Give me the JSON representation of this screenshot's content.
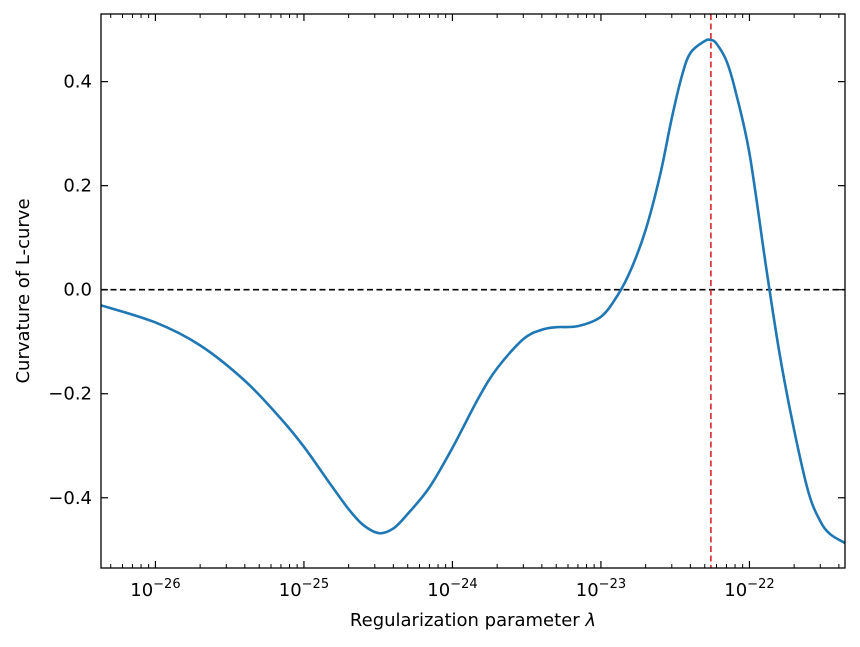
{
  "chart_data": {
    "type": "line",
    "title": "",
    "xlabel": "Regularization parameter",
    "xlabel_symbol": "λ",
    "ylabel": "Curvature of L-curve",
    "xscale": "log",
    "xlim": [
      4.3e-27,
      4.4e-22
    ],
    "ylim": [
      -0.535,
      0.53
    ],
    "x_ticks": [
      {
        "value": 1e-26,
        "base": "10",
        "exp": "−26"
      },
      {
        "value": 1e-25,
        "base": "10",
        "exp": "−25"
      },
      {
        "value": 1e-24,
        "base": "10",
        "exp": "−24"
      },
      {
        "value": 1e-23,
        "base": "10",
        "exp": "−23"
      },
      {
        "value": 1e-22,
        "base": "10",
        "exp": "−22"
      }
    ],
    "y_ticks": [
      {
        "value": 0.4,
        "label": "0.4"
      },
      {
        "value": 0.2,
        "label": "0.2"
      },
      {
        "value": 0.0,
        "label": "0.0"
      },
      {
        "value": -0.2,
        "label": "−0.2"
      },
      {
        "value": -0.4,
        "label": "−0.4"
      }
    ],
    "grid": false,
    "series": [
      {
        "color": "#1f77b4",
        "x": [
          4.3e-27,
          1e-26,
          2e-26,
          4e-26,
          7e-26,
          1e-25,
          1.5e-25,
          2e-25,
          2.5e-25,
          3.2e-25,
          4e-25,
          5e-25,
          7e-25,
          1e-24,
          1.5e-24,
          2e-24,
          3e-24,
          4e-24,
          5e-24,
          7e-24,
          1e-23,
          1.3e-23,
          1.6e-23,
          2e-23,
          2.5e-23,
          3e-23,
          3.5e-23,
          4e-23,
          5e-23,
          5.5e-23,
          6e-23,
          7e-23,
          8e-23,
          1e-22,
          1.3e-22,
          1.6e-22,
          2e-22,
          2.5e-22,
          3e-22,
          3.5e-22,
          4.4e-22
        ],
        "y": [
          -0.03,
          -0.063,
          -0.107,
          -0.175,
          -0.248,
          -0.302,
          -0.373,
          -0.422,
          -0.452,
          -0.468,
          -0.459,
          -0.431,
          -0.38,
          -0.304,
          -0.208,
          -0.151,
          -0.095,
          -0.077,
          -0.072,
          -0.07,
          -0.052,
          -0.01,
          0.04,
          0.115,
          0.22,
          0.33,
          0.41,
          0.455,
          0.478,
          0.48,
          0.473,
          0.44,
          0.385,
          0.262,
          0.04,
          -0.125,
          -0.27,
          -0.39,
          -0.445,
          -0.47,
          -0.487
        ]
      }
    ],
    "reference_lines": [
      {
        "orientation": "horizontal",
        "value": 0.0,
        "color": "#000000",
        "style": "dashed"
      },
      {
        "orientation": "vertical",
        "value": 5.5e-23,
        "color": "#d62728",
        "style": "dashed"
      }
    ]
  }
}
